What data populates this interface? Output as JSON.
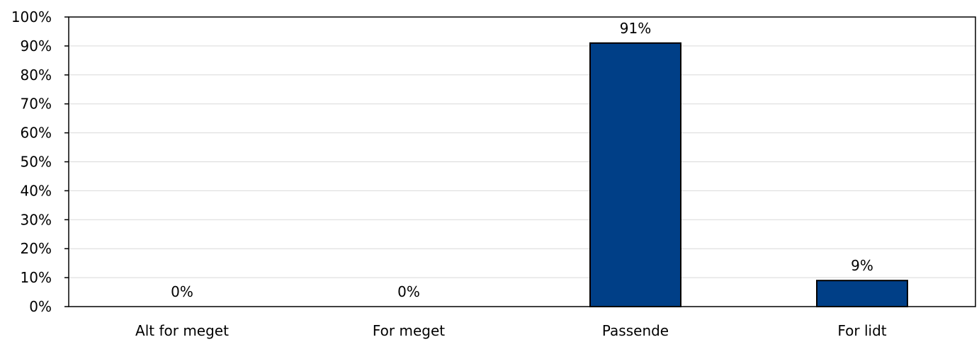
{
  "chart_data": {
    "type": "bar",
    "categories": [
      "Alt for meget",
      "For meget",
      "Passende",
      "For lidt"
    ],
    "values": [
      0,
      0,
      91,
      9
    ],
    "value_labels": [
      "0%",
      "0%",
      "91%",
      "9%"
    ],
    "title": "",
    "xlabel": "",
    "ylabel": "",
    "ylim": [
      0,
      100
    ],
    "yticks": [
      0,
      10,
      20,
      30,
      40,
      50,
      60,
      70,
      80,
      90,
      100
    ],
    "ytick_labels": [
      "0%",
      "10%",
      "20%",
      "30%",
      "40%",
      "50%",
      "60%",
      "70%",
      "80%",
      "90%",
      "100%"
    ],
    "grid": true,
    "legend": "none",
    "colors": {
      "bar": "#003f87",
      "bar_stroke": "#000000",
      "grid": "#d9d9d9",
      "axis": "#000000"
    }
  }
}
